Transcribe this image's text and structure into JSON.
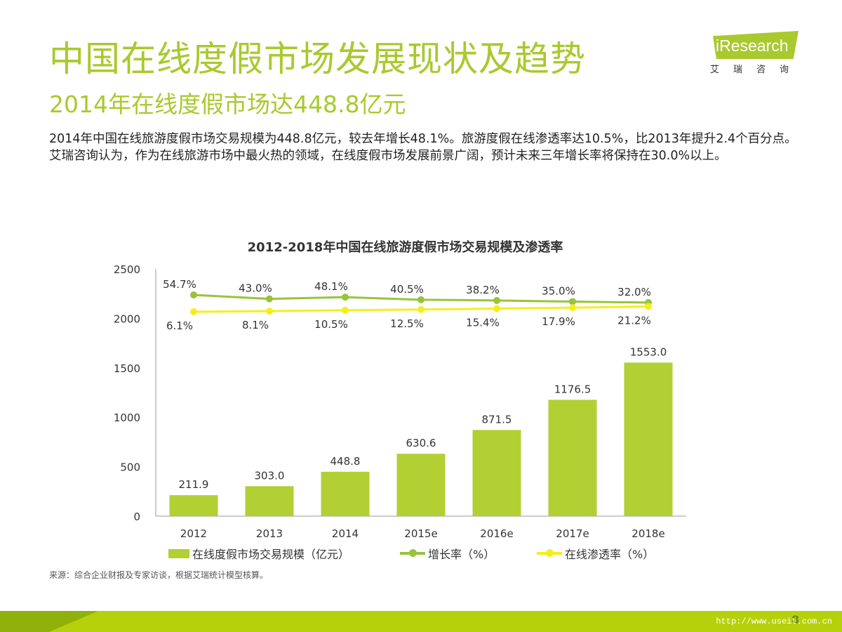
{
  "header": {
    "title": "中国在线度假市场发展现状及趋势",
    "subtitle": "2014年在线度假市场达448.8亿元"
  },
  "logo": {
    "brand": "iResearch",
    "cn": "艾瑞咨询"
  },
  "body": {
    "paragraph1": "2014年中国在线旅游度假市场交易规模为448.8亿元，较去年增长48.1%。旅游度假在线渗透率达10.5%，比2013年提升2.4个百分点。",
    "paragraph2": "艾瑞咨询认为，作为在线旅游市场中最火热的领域，在线度假市场发展前景广阔，预计未来三年增长率将保持在30.0%以上。"
  },
  "chart_data": {
    "type": "bar",
    "title": "2012-2018年中国在线旅游度假市场交易规模及渗透率",
    "categories": [
      "2012",
      "2013",
      "2014",
      "2015e",
      "2016e",
      "2017e",
      "2018e"
    ],
    "ylim": [
      0,
      2500
    ],
    "yticks": [
      0,
      500,
      1000,
      1500,
      2000,
      2500
    ],
    "series": [
      {
        "name": "在线度假市场交易规模（亿元）",
        "type": "bar",
        "color": "#b2cf34",
        "values": [
          211.9,
          303.0,
          448.8,
          630.6,
          871.5,
          1176.5,
          1553.0
        ],
        "labels": [
          "211.9",
          "303.0",
          "448.8",
          "630.6",
          "871.5",
          "1176.5",
          "1553.0"
        ]
      },
      {
        "name": "增长率（%）",
        "type": "line",
        "color": "#9bc23c",
        "values": [
          54.7,
          43.0,
          48.1,
          40.5,
          38.2,
          35.0,
          32.0
        ],
        "labels": [
          "54.7%",
          "43.0%",
          "48.1%",
          "40.5%",
          "38.2%",
          "35.0%",
          "32.0%"
        ]
      },
      {
        "name": "在线渗透率（%）",
        "type": "line",
        "color": "#f5ee1f",
        "values": [
          6.1,
          8.1,
          10.5,
          12.5,
          15.4,
          17.9,
          21.2
        ],
        "labels": [
          "6.1%",
          "8.1%",
          "10.5%",
          "12.5%",
          "15.4%",
          "17.9%",
          "21.2%"
        ]
      }
    ]
  },
  "source": "来源：综合企业财报及专家访谈，根据艾瑞统计模型核算。",
  "footer": {
    "url": "http://www.useit.com.cn",
    "page": "8"
  },
  "colors": {
    "accent": "#a9c92e",
    "bar": "#b2cf34",
    "growth_line": "#9bc23c",
    "penetration_line": "#f5ee1f"
  }
}
